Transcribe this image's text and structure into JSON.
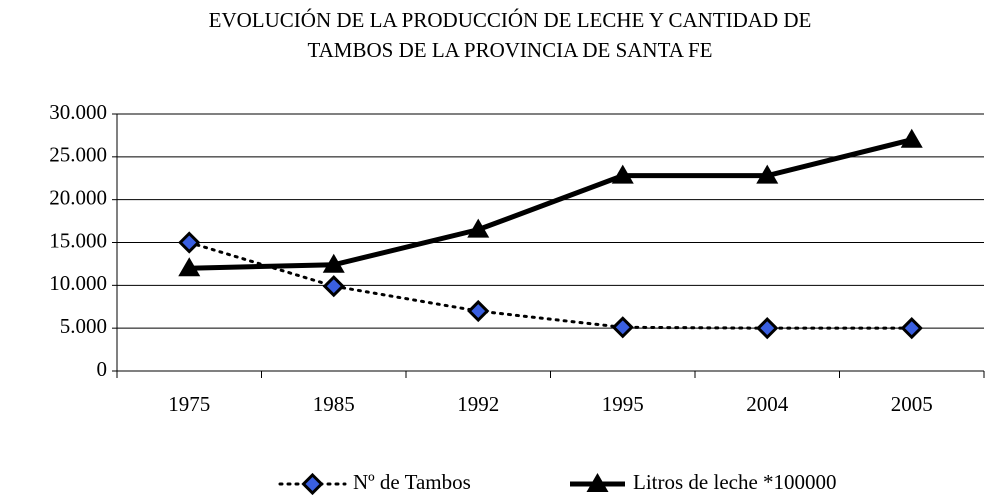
{
  "chart_data": {
    "type": "line",
    "title": [
      "EVOLUCIÓN DE LA PRODUCCIÓN DE LECHE Y CANTIDAD DE",
      "TAMBOS DE LA PROVINCIA DE SANTA FE"
    ],
    "categories": [
      "1975",
      "1985",
      "1992",
      "1995",
      "2004",
      "2005"
    ],
    "series": [
      {
        "name": "Nº de Tambos",
        "color": "#000000",
        "marker_color": "#3a5fe0",
        "marker": "diamond",
        "dash": "dotted",
        "values": [
          15000,
          9900,
          7000,
          5100,
          5000,
          5000
        ]
      },
      {
        "name": "Litros de leche *100000",
        "color": "#000000",
        "marker_color": "#000000",
        "marker": "triangle",
        "dash": "solid",
        "values": [
          12000,
          12400,
          16500,
          22800,
          22800,
          27000
        ]
      }
    ],
    "ylim": [
      0,
      30000
    ],
    "yticks": [
      0,
      {
        "value": 5000,
        "label": "5.000"
      },
      {
        "value": 10000,
        "label": "10.000"
      },
      {
        "value": 15000,
        "label": "15.000"
      },
      {
        "value": 20000,
        "label": "20.000"
      },
      {
        "value": 25000,
        "label": "25.000"
      },
      {
        "value": 30000,
        "label": "30.000"
      }
    ],
    "grid": true,
    "legend": "bottom"
  }
}
